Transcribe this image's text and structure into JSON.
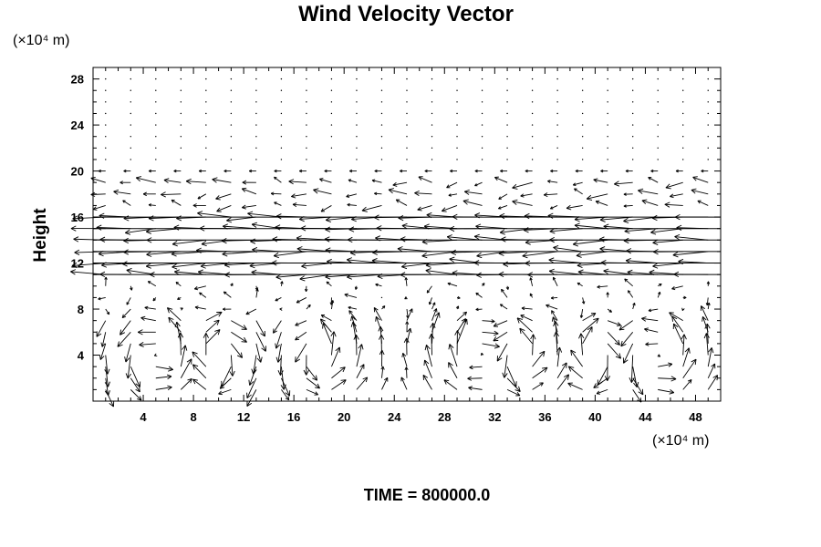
{
  "chart_data": {
    "type": "vector-field",
    "title": "Wind Velocity Vector",
    "ylabel": "Height",
    "x_unit_label": "(×10⁴ m)",
    "y_unit_label": "(×10⁴ m)",
    "footer": "TIME = 800000.0",
    "xlim": [
      0,
      50
    ],
    "ylim": [
      0,
      29
    ],
    "x_ticks": [
      4,
      8,
      12,
      16,
      20,
      24,
      28,
      32,
      36,
      40,
      44,
      48
    ],
    "y_ticks": [
      4,
      8,
      12,
      16,
      20,
      24,
      28
    ],
    "grid": false,
    "vector_color": "#000000",
    "grid_spacing": {
      "dx": 2,
      "dy": 1
    },
    "jet_layer": {
      "y_bottom": 11,
      "y_top": 16,
      "direction": "westward"
    },
    "upper_flow_layer": {
      "y_bottom": 17,
      "y_top": 20,
      "direction": "westward"
    },
    "lower_circulation_cells_x_centers": [
      5,
      10,
      18,
      31,
      34,
      40,
      45
    ]
  }
}
